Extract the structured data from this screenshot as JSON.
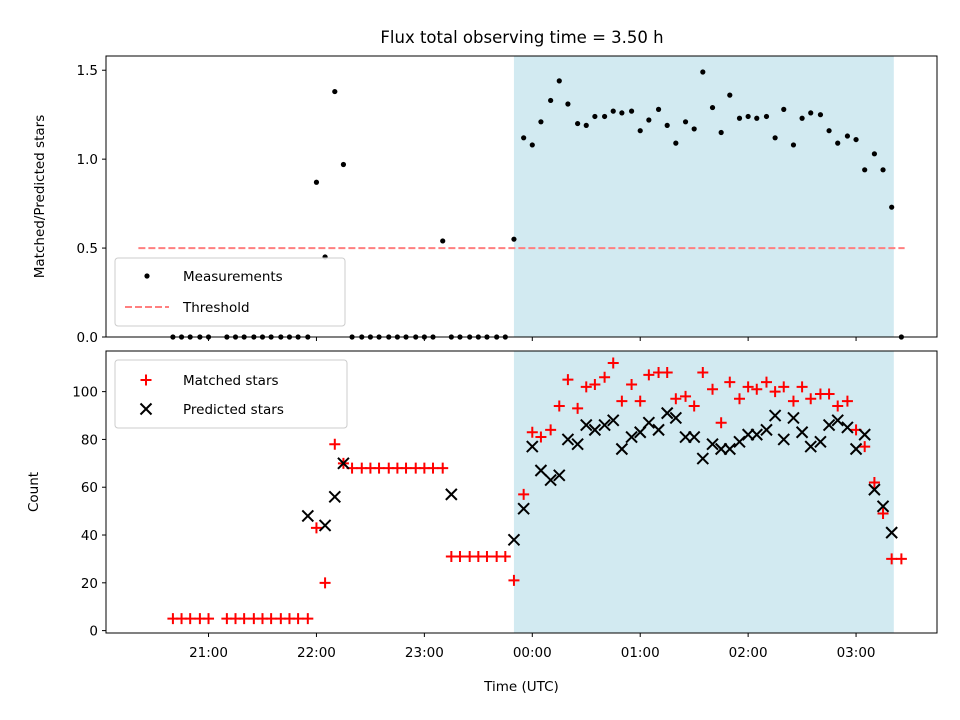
{
  "title": "Flux total observing time = 3.50 h",
  "colors": {
    "band": "#add8e6",
    "threshold": "#ff7f7f",
    "measurement": "#000000",
    "matched": "#ff0000",
    "predicted": "#000000"
  },
  "chart_data": [
    {
      "type": "scatter",
      "panel": "top",
      "ylabel": "Matched/Predicted stars",
      "xlim_hours": [
        20.05,
        27.75
      ],
      "ylim": [
        0,
        1.58
      ],
      "yticks": [
        0.0,
        0.5,
        1.0,
        1.5
      ],
      "ytick_labels": [
        "0.0",
        "0.5",
        "1.0",
        "1.5"
      ],
      "shaded_region_hours": [
        23.83,
        27.35
      ],
      "legend": {
        "placement": "lower-left",
        "labels": [
          "Measurements",
          "Threshold"
        ]
      },
      "threshold": {
        "name": "Threshold",
        "y": 0.5,
        "x_hours": [
          20.35,
          27.45
        ]
      },
      "series": [
        {
          "name": "Measurements",
          "x_hours": [
            20.67,
            20.75,
            20.83,
            20.92,
            21.0,
            21.17,
            21.25,
            21.33,
            21.42,
            21.5,
            21.58,
            21.67,
            21.75,
            21.83,
            21.92,
            22.0,
            22.08,
            22.17,
            22.25,
            22.33,
            22.42,
            22.5,
            22.58,
            22.67,
            22.75,
            22.83,
            22.92,
            23.0,
            23.08,
            23.17,
            23.25,
            23.33,
            23.42,
            23.5,
            23.58,
            23.67,
            23.75,
            23.83,
            23.92,
            24.0,
            24.08,
            24.17,
            24.25,
            24.33,
            24.42,
            24.5,
            24.58,
            24.67,
            24.75,
            24.83,
            24.92,
            25.0,
            25.08,
            25.17,
            25.25,
            25.33,
            25.42,
            25.5,
            25.58,
            25.67,
            25.75,
            25.83,
            25.92,
            26.0,
            26.08,
            26.17,
            26.25,
            26.33,
            26.42,
            26.5,
            26.58,
            26.67,
            26.75,
            26.83,
            26.92,
            27.0,
            27.08,
            27.17,
            27.25,
            27.33,
            27.42
          ],
          "y": [
            0,
            0,
            0,
            0,
            0,
            0,
            0,
            0,
            0,
            0,
            0,
            0,
            0,
            0,
            0,
            0.87,
            0.45,
            1.38,
            0.97,
            0,
            0,
            0,
            0,
            0,
            0,
            0,
            0,
            0,
            0,
            0.54,
            0,
            0,
            0,
            0,
            0,
            0,
            0,
            0.55,
            1.12,
            1.08,
            1.21,
            1.33,
            1.44,
            1.31,
            1.2,
            1.19,
            1.24,
            1.24,
            1.27,
            1.26,
            1.27,
            1.16,
            1.22,
            1.28,
            1.19,
            1.09,
            1.21,
            1.17,
            1.49,
            1.29,
            1.15,
            1.36,
            1.23,
            1.24,
            1.23,
            1.24,
            1.12,
            1.28,
            1.08,
            1.23,
            1.26,
            1.25,
            1.16,
            1.09,
            1.13,
            1.11,
            0.94,
            1.03,
            0.94,
            0.73,
            0
          ]
        }
      ]
    },
    {
      "type": "scatter",
      "panel": "bottom",
      "xlabel": "Time (UTC)",
      "ylabel": "Count",
      "xlim_hours": [
        20.05,
        27.75
      ],
      "ylim": [
        -1,
        117
      ],
      "yticks": [
        0,
        20,
        40,
        60,
        80,
        100
      ],
      "ytick_labels": [
        "0",
        "20",
        "40",
        "60",
        "80",
        "100"
      ],
      "xticks_hours": [
        21,
        22,
        23,
        24,
        25,
        26,
        27
      ],
      "xtick_labels": [
        "21:00",
        "22:00",
        "23:00",
        "00:00",
        "01:00",
        "02:00",
        "03:00"
      ],
      "shaded_region_hours": [
        23.83,
        27.35
      ],
      "legend": {
        "placement": "upper-left",
        "labels": [
          "Matched stars",
          "Predicted stars"
        ]
      },
      "series": [
        {
          "name": "Matched stars",
          "marker": "plus",
          "x_hours": [
            20.67,
            20.75,
            20.83,
            20.92,
            21.0,
            21.17,
            21.25,
            21.33,
            21.42,
            21.5,
            21.58,
            21.67,
            21.75,
            21.83,
            21.92,
            22.0,
            22.08,
            22.17,
            22.25,
            22.33,
            22.42,
            22.5,
            22.58,
            22.67,
            22.75,
            22.83,
            22.92,
            23.0,
            23.08,
            23.17,
            23.25,
            23.33,
            23.42,
            23.5,
            23.58,
            23.67,
            23.75,
            23.83,
            23.92,
            24.0,
            24.08,
            24.17,
            24.25,
            24.33,
            24.42,
            24.5,
            24.58,
            24.67,
            24.75,
            24.83,
            24.92,
            25.0,
            25.08,
            25.17,
            25.25,
            25.33,
            25.42,
            25.5,
            25.58,
            25.67,
            25.75,
            25.83,
            25.92,
            26.0,
            26.08,
            26.17,
            26.25,
            26.33,
            26.42,
            26.5,
            26.58,
            26.67,
            26.75,
            26.83,
            26.92,
            27.0,
            27.08,
            27.17,
            27.25,
            27.33,
            27.42
          ],
          "y": [
            5,
            5,
            5,
            5,
            5,
            5,
            5,
            5,
            5,
            5,
            5,
            5,
            5,
            5,
            5,
            43,
            20,
            78,
            70,
            68,
            68,
            68,
            68,
            68,
            68,
            68,
            68,
            68,
            68,
            68,
            31,
            31,
            31,
            31,
            31,
            31,
            31,
            21,
            57,
            83,
            81,
            84,
            94,
            105,
            93,
            102,
            103,
            106,
            112,
            96,
            103,
            96,
            107,
            108,
            108,
            97,
            98,
            94,
            108,
            101,
            87,
            104,
            97,
            102,
            101,
            104,
            100,
            102,
            96,
            102,
            97,
            99,
            99,
            94,
            96,
            84,
            77,
            62,
            49,
            30,
            30
          ]
        },
        {
          "name": "Predicted stars",
          "marker": "x",
          "x_hours": [
            21.92,
            22.08,
            22.17,
            22.25,
            23.25,
            23.83,
            23.92,
            24.0,
            24.08,
            24.17,
            24.25,
            24.33,
            24.42,
            24.5,
            24.58,
            24.67,
            24.75,
            24.83,
            24.92,
            25.0,
            25.08,
            25.17,
            25.25,
            25.33,
            25.42,
            25.5,
            25.58,
            25.67,
            25.75,
            25.83,
            25.92,
            26.0,
            26.08,
            26.17,
            26.25,
            26.33,
            26.42,
            26.5,
            26.58,
            26.67,
            26.75,
            26.83,
            26.92,
            27.0,
            27.08,
            27.17,
            27.25,
            27.33
          ],
          "y": [
            48,
            44,
            56,
            70,
            57,
            38,
            51,
            77,
            67,
            63,
            65,
            80,
            78,
            86,
            84,
            86,
            88,
            76,
            81,
            83,
            87,
            84,
            91,
            89,
            81,
            81,
            72,
            78,
            76,
            76,
            79,
            82,
            82,
            84,
            90,
            80,
            89,
            83,
            77,
            79,
            86,
            88,
            85,
            76,
            82,
            59,
            52,
            41
          ]
        }
      ]
    }
  ]
}
